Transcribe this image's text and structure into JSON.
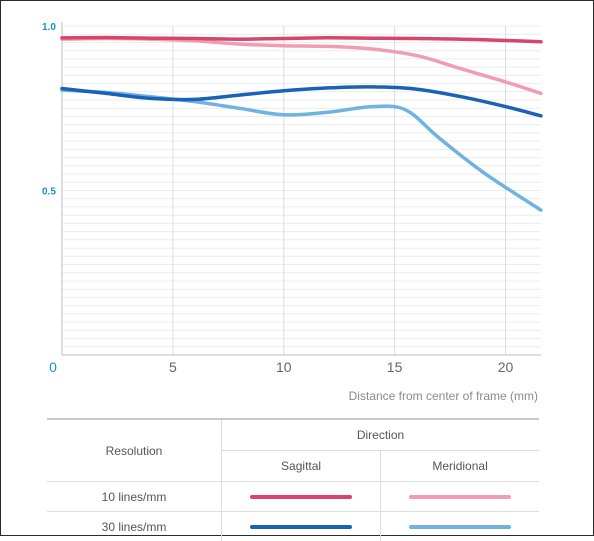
{
  "chart_data": {
    "type": "line",
    "xlabel": "Distance from center of frame (mm)",
    "ylabel": "",
    "xlim": [
      0,
      21.6
    ],
    "ylim": [
      0,
      1.0
    ],
    "x_ticks": [
      "0",
      "5",
      "10",
      "15",
      "20"
    ],
    "y_ticks": [
      "0.5",
      "1.0"
    ],
    "grid": true,
    "series": [
      {
        "name": "10 lines/mm Sagittal",
        "color": "#d6456a",
        "dash": "solid",
        "x": [
          0,
          2,
          4,
          6,
          8,
          10,
          12,
          14,
          16,
          18,
          20,
          21.6
        ],
        "y": [
          0.964,
          0.965,
          0.963,
          0.962,
          0.96,
          0.962,
          0.964,
          0.963,
          0.962,
          0.96,
          0.956,
          0.952
        ]
      },
      {
        "name": "10 lines/mm Meridional",
        "color": "#f09db2",
        "dash": "solid",
        "x": [
          0,
          2,
          4,
          6,
          8,
          10,
          12,
          14,
          16,
          18,
          20,
          21.6
        ],
        "y": [
          0.96,
          0.962,
          0.96,
          0.955,
          0.945,
          0.94,
          0.938,
          0.93,
          0.91,
          0.87,
          0.83,
          0.795
        ]
      },
      {
        "name": "30 lines/mm Sagittal",
        "color": "#1a62b5",
        "dash": "solid",
        "x": [
          0,
          2,
          4,
          6,
          8,
          10,
          12,
          14,
          16,
          18,
          20,
          21.6
        ],
        "y": [
          0.81,
          0.795,
          0.78,
          0.777,
          0.79,
          0.803,
          0.812,
          0.815,
          0.808,
          0.785,
          0.755,
          0.727
        ]
      },
      {
        "name": "30 lines/mm Meridional",
        "color": "#6fb3e0",
        "dash": "solid",
        "x": [
          0,
          2,
          4,
          6,
          8,
          10,
          12,
          14,
          15.5,
          17,
          19,
          21.6
        ],
        "y": [
          0.805,
          0.798,
          0.785,
          0.77,
          0.75,
          0.73,
          0.738,
          0.755,
          0.745,
          0.66,
          0.555,
          0.44
        ]
      }
    ]
  },
  "legend": {
    "resolution_header": "Resolution",
    "direction_header": "Direction",
    "sagittal_header": "Sagittal",
    "meridional_header": "Meridional",
    "rows": [
      {
        "label": "10 lines/mm",
        "sagittal_color": "#d6456a",
        "meridional_color": "#f09db2"
      },
      {
        "label": "30 lines/mm",
        "sagittal_color": "#1a62b5",
        "meridional_color": "#6fb3e0"
      }
    ]
  }
}
